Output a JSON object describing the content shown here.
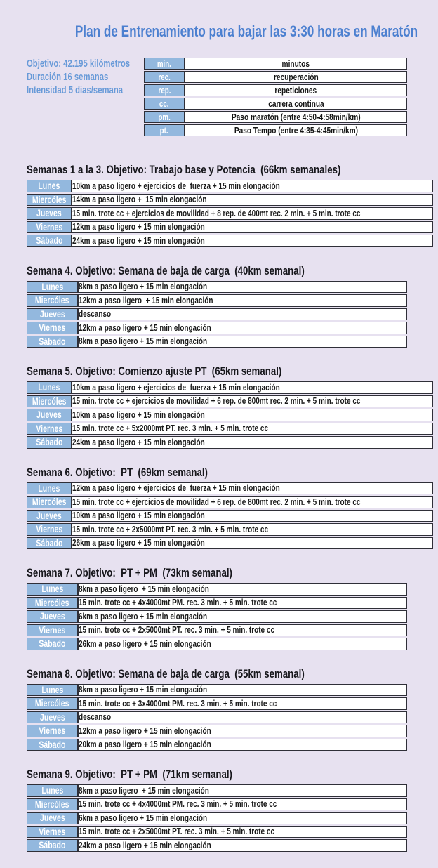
{
  "page": {
    "title": "Plan de Entrenamiento para bajar las 3:30 horas en Maratón"
  },
  "colors": {
    "background": "#e7e1f0",
    "title_blue": "#4c80d0",
    "info_blue": "#689ad8",
    "cell_blue": "#93b8de",
    "border_dark": "#2f2f38",
    "cell_white": "#ffffff"
  },
  "plan_info": {
    "lines": [
      "Objetivo: 42.195 kilómetros",
      "Duración 16 semanas",
      "Intensidad 5 dias/semana"
    ]
  },
  "legend": {
    "rows": [
      {
        "abbr": "min.",
        "meaning": "minutos"
      },
      {
        "abbr": "rec.",
        "meaning": "recuperación"
      },
      {
        "abbr": "rep.",
        "meaning": "repeticiones"
      },
      {
        "abbr": "cc.",
        "meaning": "carrera continua"
      },
      {
        "abbr": "pm.",
        "meaning": "Paso maratón (entre 4:50-4:58min/km)"
      },
      {
        "abbr": "pt.",
        "meaning": "Paso Tempo (entre 4:35-4:45min/km)"
      }
    ]
  },
  "weeks": [
    {
      "heading": "Semanas 1 a la 3. Objetivo: Trabajo base y Potencia  (66km semanales)",
      "rows": [
        {
          "day": "Lunes",
          "workout": "10km a paso ligero + ejercicios de  fuerza + 15 min elongación"
        },
        {
          "day": "Miercóles",
          "workout": "14km a paso ligero +  15 min elongación"
        },
        {
          "day": "Jueves",
          "workout": "15 min. trote cc + ejercicios de movilidad + 8 rep. de 400mt rec. 2 min. + 5 min. trote cc"
        },
        {
          "day": "Viernes",
          "workout": "12km a paso ligero + 15 min elongación"
        },
        {
          "day": "Sábado",
          "workout": "24km a paso ligero + 15 min elongación"
        }
      ]
    },
    {
      "heading": "Semana 4. Objetivo: Semana de baja de carga  (40km semanal)",
      "rows": [
        {
          "day": "Lunes",
          "workout": "8km a paso ligero + 15 min elongación"
        },
        {
          "day": "Miercóles",
          "workout": "12km a paso ligero  + 15 min elongación"
        },
        {
          "day": "Jueves",
          "workout": "descanso"
        },
        {
          "day": "Viernes",
          "workout": "12km a paso ligero + 15 min elongación"
        },
        {
          "day": "Sábado",
          "workout": "8km a paso ligero + 15 min elongación"
        }
      ]
    },
    {
      "heading": "Semana 5. Objetivo: Comienzo ajuste PT  (65km semanal)",
      "rows": [
        {
          "day": "Lunes",
          "workout": "10km a paso ligero + ejercicios de  fuerza + 15 min elongación"
        },
        {
          "day": "Miercóles",
          "workout": "15 min. trote cc + ejercicios de movilidad + 6 rep. de 800mt rec. 2 min. + 5 min. trote cc"
        },
        {
          "day": "Jueves",
          "workout": "10km a paso ligero + 15 min elongación"
        },
        {
          "day": "Viernes",
          "workout": "15 min. trote cc + 5x2000mt PT. rec. 3 min. + 5 min. trote cc"
        },
        {
          "day": "Sábado",
          "workout": "24km a paso ligero + 15 min elongación"
        }
      ]
    },
    {
      "heading": "Semana 6. Objetivo:  PT  (69km semanal)",
      "rows": [
        {
          "day": "Lunes",
          "workout": "12km a paso ligero + ejercicios de  fuerza + 15 min elongación"
        },
        {
          "day": "Miercóles",
          "workout": "15 min. trote cc + ejercicios de movilidad + 6 rep. de 800mt rec. 2 min. + 5 min. trote cc"
        },
        {
          "day": "Jueves",
          "workout": "10km a paso ligero + 15 min elongación"
        },
        {
          "day": "Viernes",
          "workout": "15 min. trote cc + 2x5000mt PT. rec. 3 min. + 5 min. trote cc"
        },
        {
          "day": "Sábado",
          "workout": "26km a paso ligero + 15 min elongación"
        }
      ]
    },
    {
      "heading": "Semana 7. Objetivo:  PT + PM  (73km semanal)",
      "rows": [
        {
          "day": "Lunes",
          "workout": "8km a paso ligero  + 15 min elongación"
        },
        {
          "day": "Miercóles",
          "workout": "15 min. trote cc + 4x4000mt PM. rec. 3 min. + 5 min. trote cc"
        },
        {
          "day": "Jueves",
          "workout": "6km a paso ligero + 15 min elongación"
        },
        {
          "day": "Viernes",
          "workout": "15 min. trote cc + 2x5000mt PT. rec. 3 min. + 5 min. trote cc"
        },
        {
          "day": "Sábado",
          "workout": "26km a paso ligero + 15 min elongación"
        }
      ]
    },
    {
      "heading": "Semana 8. Objetivo: Semana de baja de carga  (55km semanal)",
      "rows": [
        {
          "day": "Lunes",
          "workout": "8km a paso ligero + 15 min elongación"
        },
        {
          "day": "Miercóles",
          "workout": "15 min. trote cc + 3x4000mt PM. rec. 3 min. + 5 min. trote cc"
        },
        {
          "day": "Jueves",
          "workout": "descanso"
        },
        {
          "day": "Viernes",
          "workout": "12km a paso ligero + 15 min elongación"
        },
        {
          "day": "Sábado",
          "workout": "20km a paso ligero + 15 min elongación"
        }
      ]
    },
    {
      "heading": "Semana 9. Objetivo:  PT + PM  (71km semanal)",
      "rows": [
        {
          "day": "Lunes",
          "workout": "8km a paso ligero  + 15 min elongación"
        },
        {
          "day": "Miercóles",
          "workout": "15 min. trote cc + 4x4000mt PM. rec. 3 min. + 5 min. trote cc"
        },
        {
          "day": "Jueves",
          "workout": "6km a paso ligero + 15 min elongación"
        },
        {
          "day": "Viernes",
          "workout": "15 min. trote cc + 2x5000mt PT. rec. 3 min. + 5 min. trote cc"
        },
        {
          "day": "Sábado",
          "workout": "24km a paso ligero + 15 min elongación"
        }
      ]
    }
  ]
}
